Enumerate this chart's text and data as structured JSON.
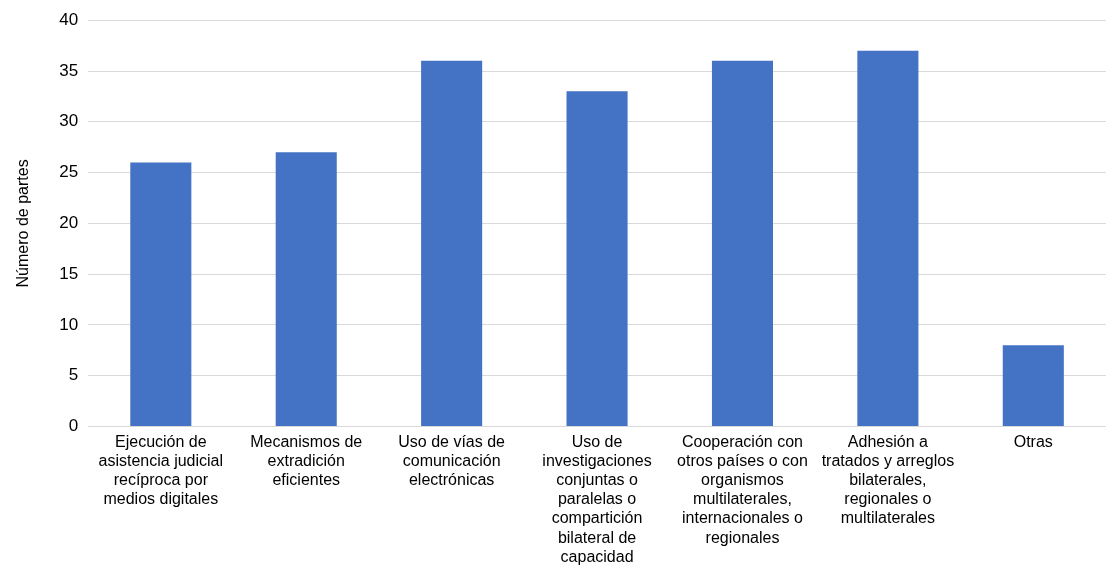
{
  "chart_data": {
    "type": "bar",
    "ylabel": "Número de partes",
    "categories": [
      "Ejecución de asistencia judicial recíproca por medios digitales",
      "Mecanismos de extradición eficientes",
      "Uso de vías de comunicación electrónicas",
      "Uso de investigaciones conjuntas o paralelas o compartición bilateral de capacidad",
      "Cooperación con otros países o con organismos multilaterales, internacionales o regionales",
      "Adhesión a tratados y arreglos bilaterales, regionales o multilaterales",
      "Otras"
    ],
    "values": [
      26,
      27,
      36,
      33,
      36,
      37,
      8
    ],
    "color": "#4472c4",
    "ylim": [
      0,
      40
    ],
    "yticks": [
      0,
      5,
      10,
      15,
      20,
      25,
      30,
      35,
      40
    ],
    "grid": "y",
    "legend": false
  }
}
